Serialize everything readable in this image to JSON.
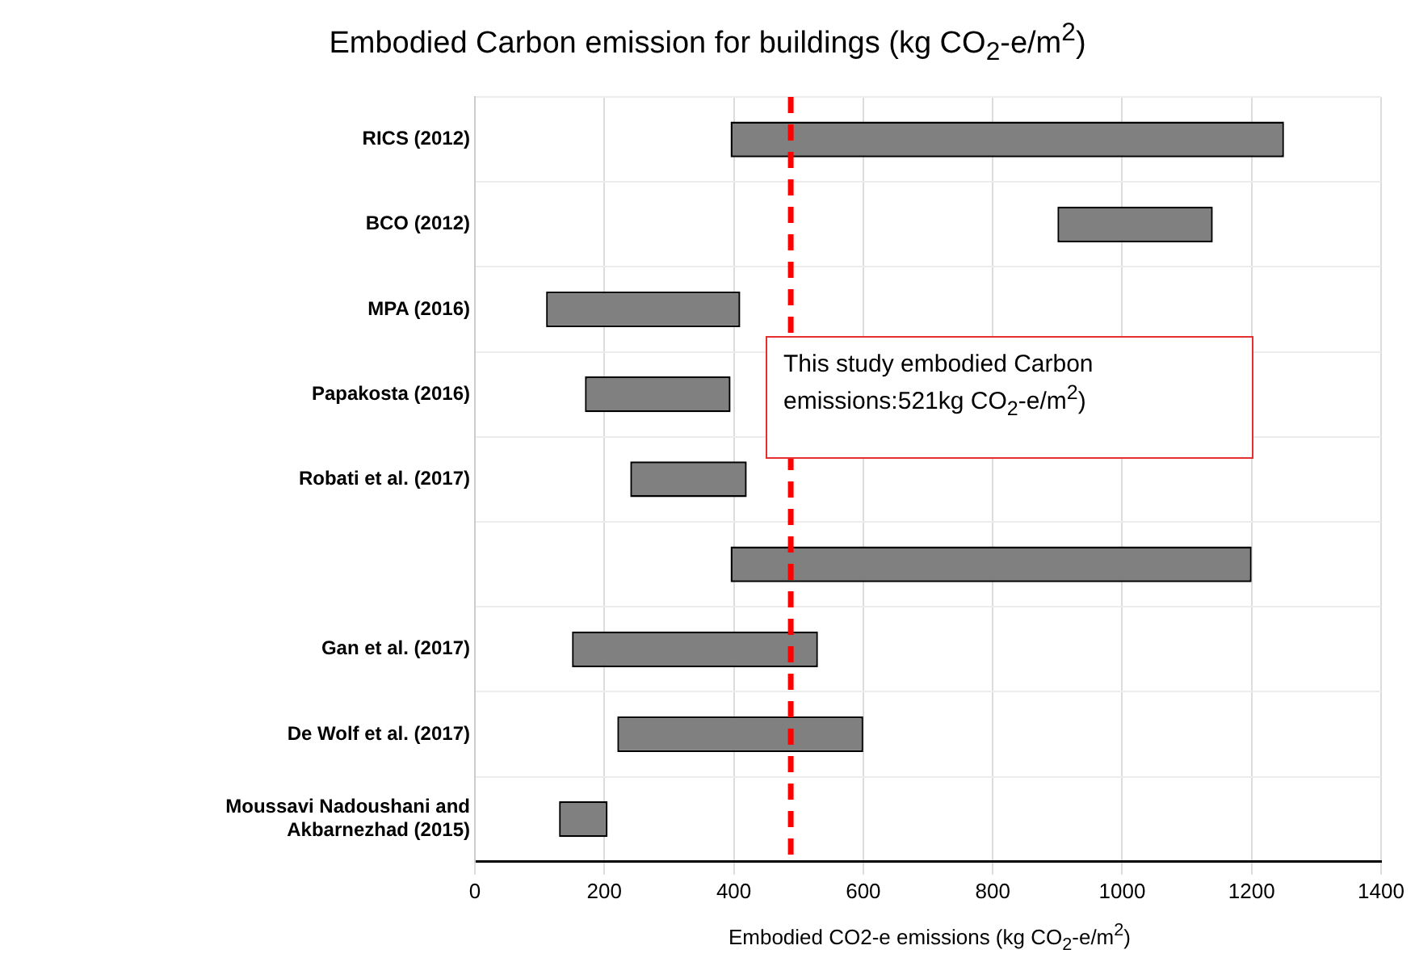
{
  "chart_data": {
    "type": "bar",
    "orientation": "horizontal",
    "title": "Embodied Carbon emission for buildings (kg CO$_{2}$-e/m$^{2}$)",
    "xlabel": "Embodied CO2-e emissions (kg CO$_{2}$-e/m$^{2}$)",
    "categories": [
      "RICS (2012)",
      "BCO (2012)",
      "MPA (2016)",
      "Papakosta (2016)",
      "Robati et al. (2017)",
      null,
      "Gan et al. (2017)",
      "De Wolf et al. (2017)",
      "Moussavi Nadoushani and Akbarnezhad (2015)"
    ],
    "base": [
      395,
      900,
      110,
      170,
      240,
      395,
      150,
      220,
      130
    ],
    "values": [
      855,
      240,
      300,
      225,
      180,
      805,
      380,
      380,
      75
    ],
    "color": "#808080",
    "xlim": [
      0,
      1400
    ],
    "xticks": [
      0,
      200,
      400,
      600,
      800,
      1000,
      1200,
      1400
    ],
    "grid": true,
    "legend": false,
    "ref_lines": [
      {
        "axis": "x",
        "value": 488,
        "color": "#ff0000",
        "line_style": "dashed"
      }
    ],
    "annotations": [
      "This study embodied Carbon emissions:521kg CO$_{2}$-e/m$^{2}$)"
    ]
  }
}
